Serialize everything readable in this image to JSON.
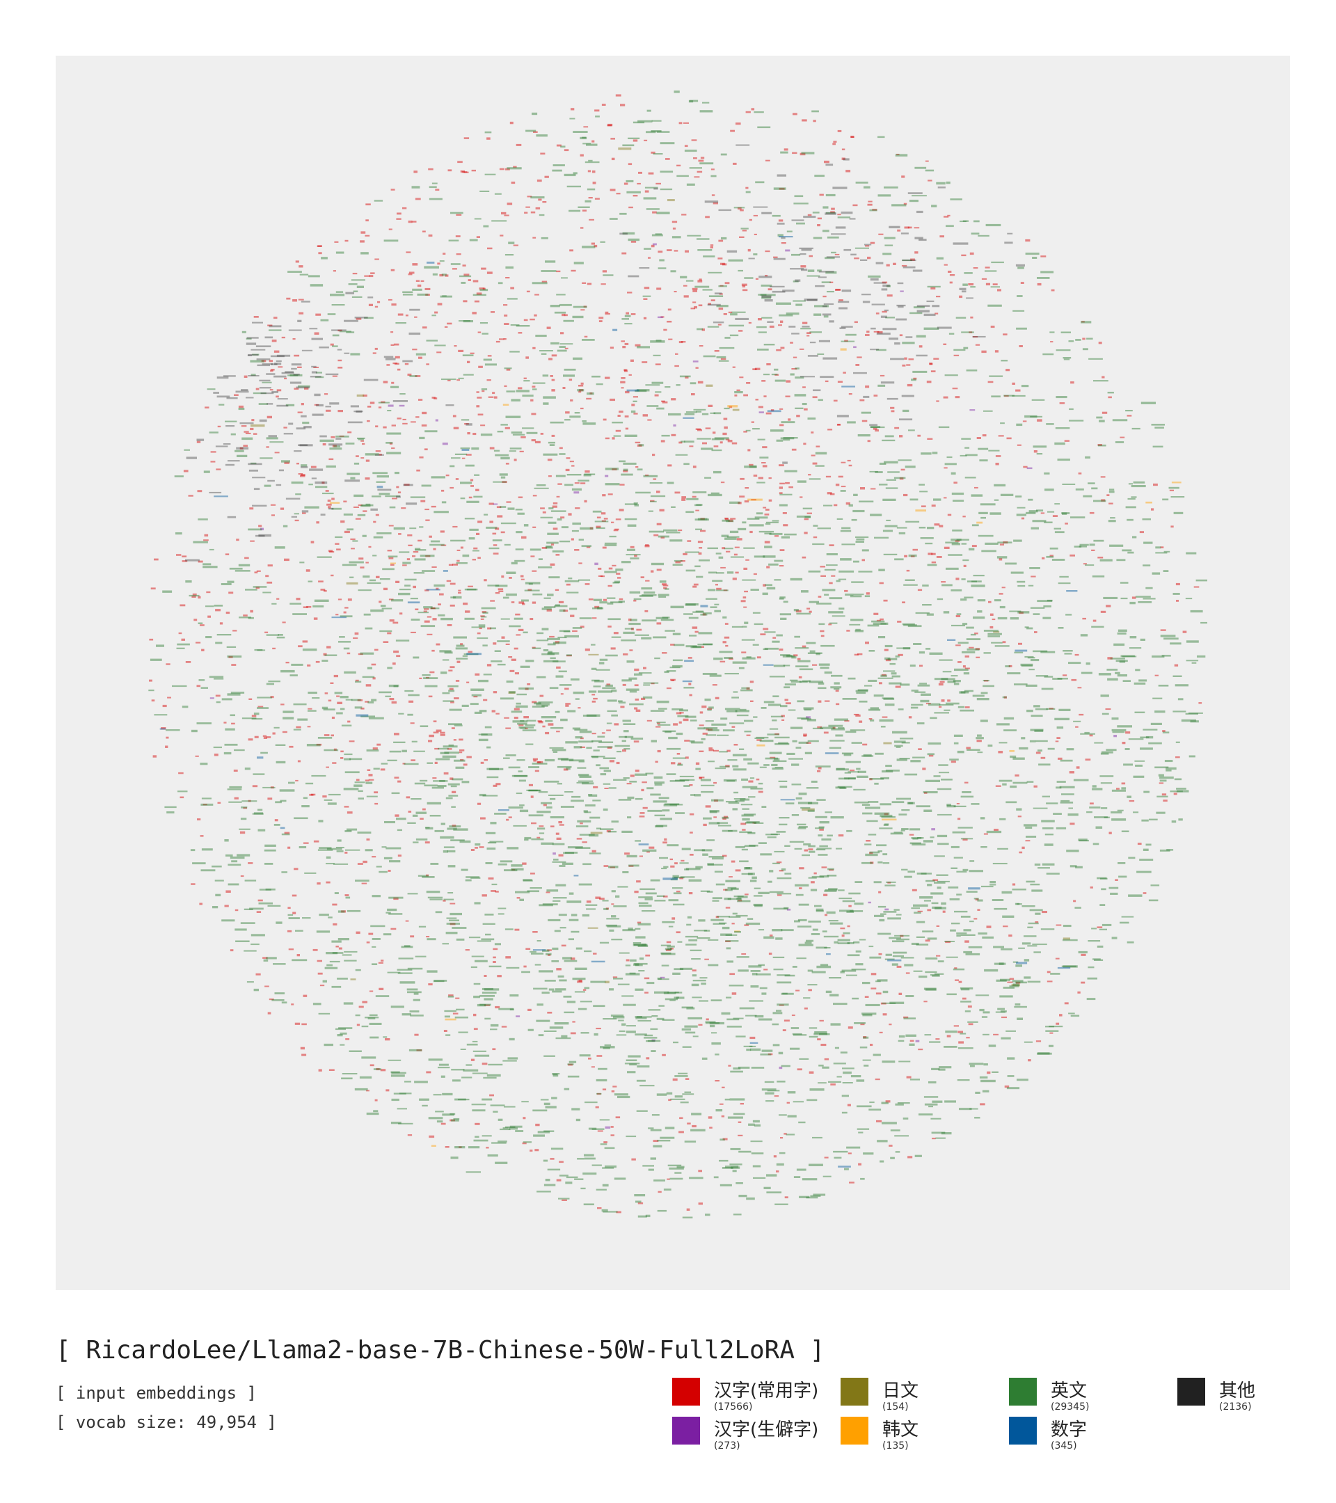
{
  "header": {
    "model_title": "[ RicardoLee/Llama2-base-7B-Chinese-50W-Full2LoRA ]",
    "subtitle": "[ input embeddings ]",
    "vocab_line": "[ vocab size: 49,954 ]"
  },
  "chart_data": {
    "type": "scatter",
    "background_color": "#efefef",
    "grid": false,
    "legend_placement": "bottom-right",
    "vocab_size": 49954,
    "series": [
      {
        "name": "汉字(常用字)",
        "count": 17566,
        "color": "#d40000"
      },
      {
        "name": "汉字(生僻字)",
        "count": 273,
        "color": "#7b1fa2"
      },
      {
        "name": "日文",
        "count": 154,
        "color": "#827717"
      },
      {
        "name": "韩文",
        "count": 135,
        "color": "#ffa000"
      },
      {
        "name": "英文",
        "count": 29345,
        "color": "#2e7d32"
      },
      {
        "name": "数字",
        "count": 345,
        "color": "#01579b"
      },
      {
        "name": "其他",
        "count": 2136,
        "color": "#212121"
      }
    ],
    "legend": [
      {
        "label": "汉字(常用字)",
        "count_label": "(17566)",
        "color": "#d40000"
      },
      {
        "label": "汉字(生僻字)",
        "count_label": "(273)",
        "color": "#7b1fa2"
      },
      {
        "label": "日文",
        "count_label": "(154)",
        "color": "#827717"
      },
      {
        "label": "韩文",
        "count_label": "(135)",
        "color": "#ffa000"
      },
      {
        "label": "英文",
        "count_label": "(29345)",
        "color": "#2e7d32"
      },
      {
        "label": "数字",
        "count_label": "(345)",
        "color": "#01579b"
      },
      {
        "label": "其他",
        "count_label": "(2136)",
        "color": "#212121"
      }
    ]
  }
}
